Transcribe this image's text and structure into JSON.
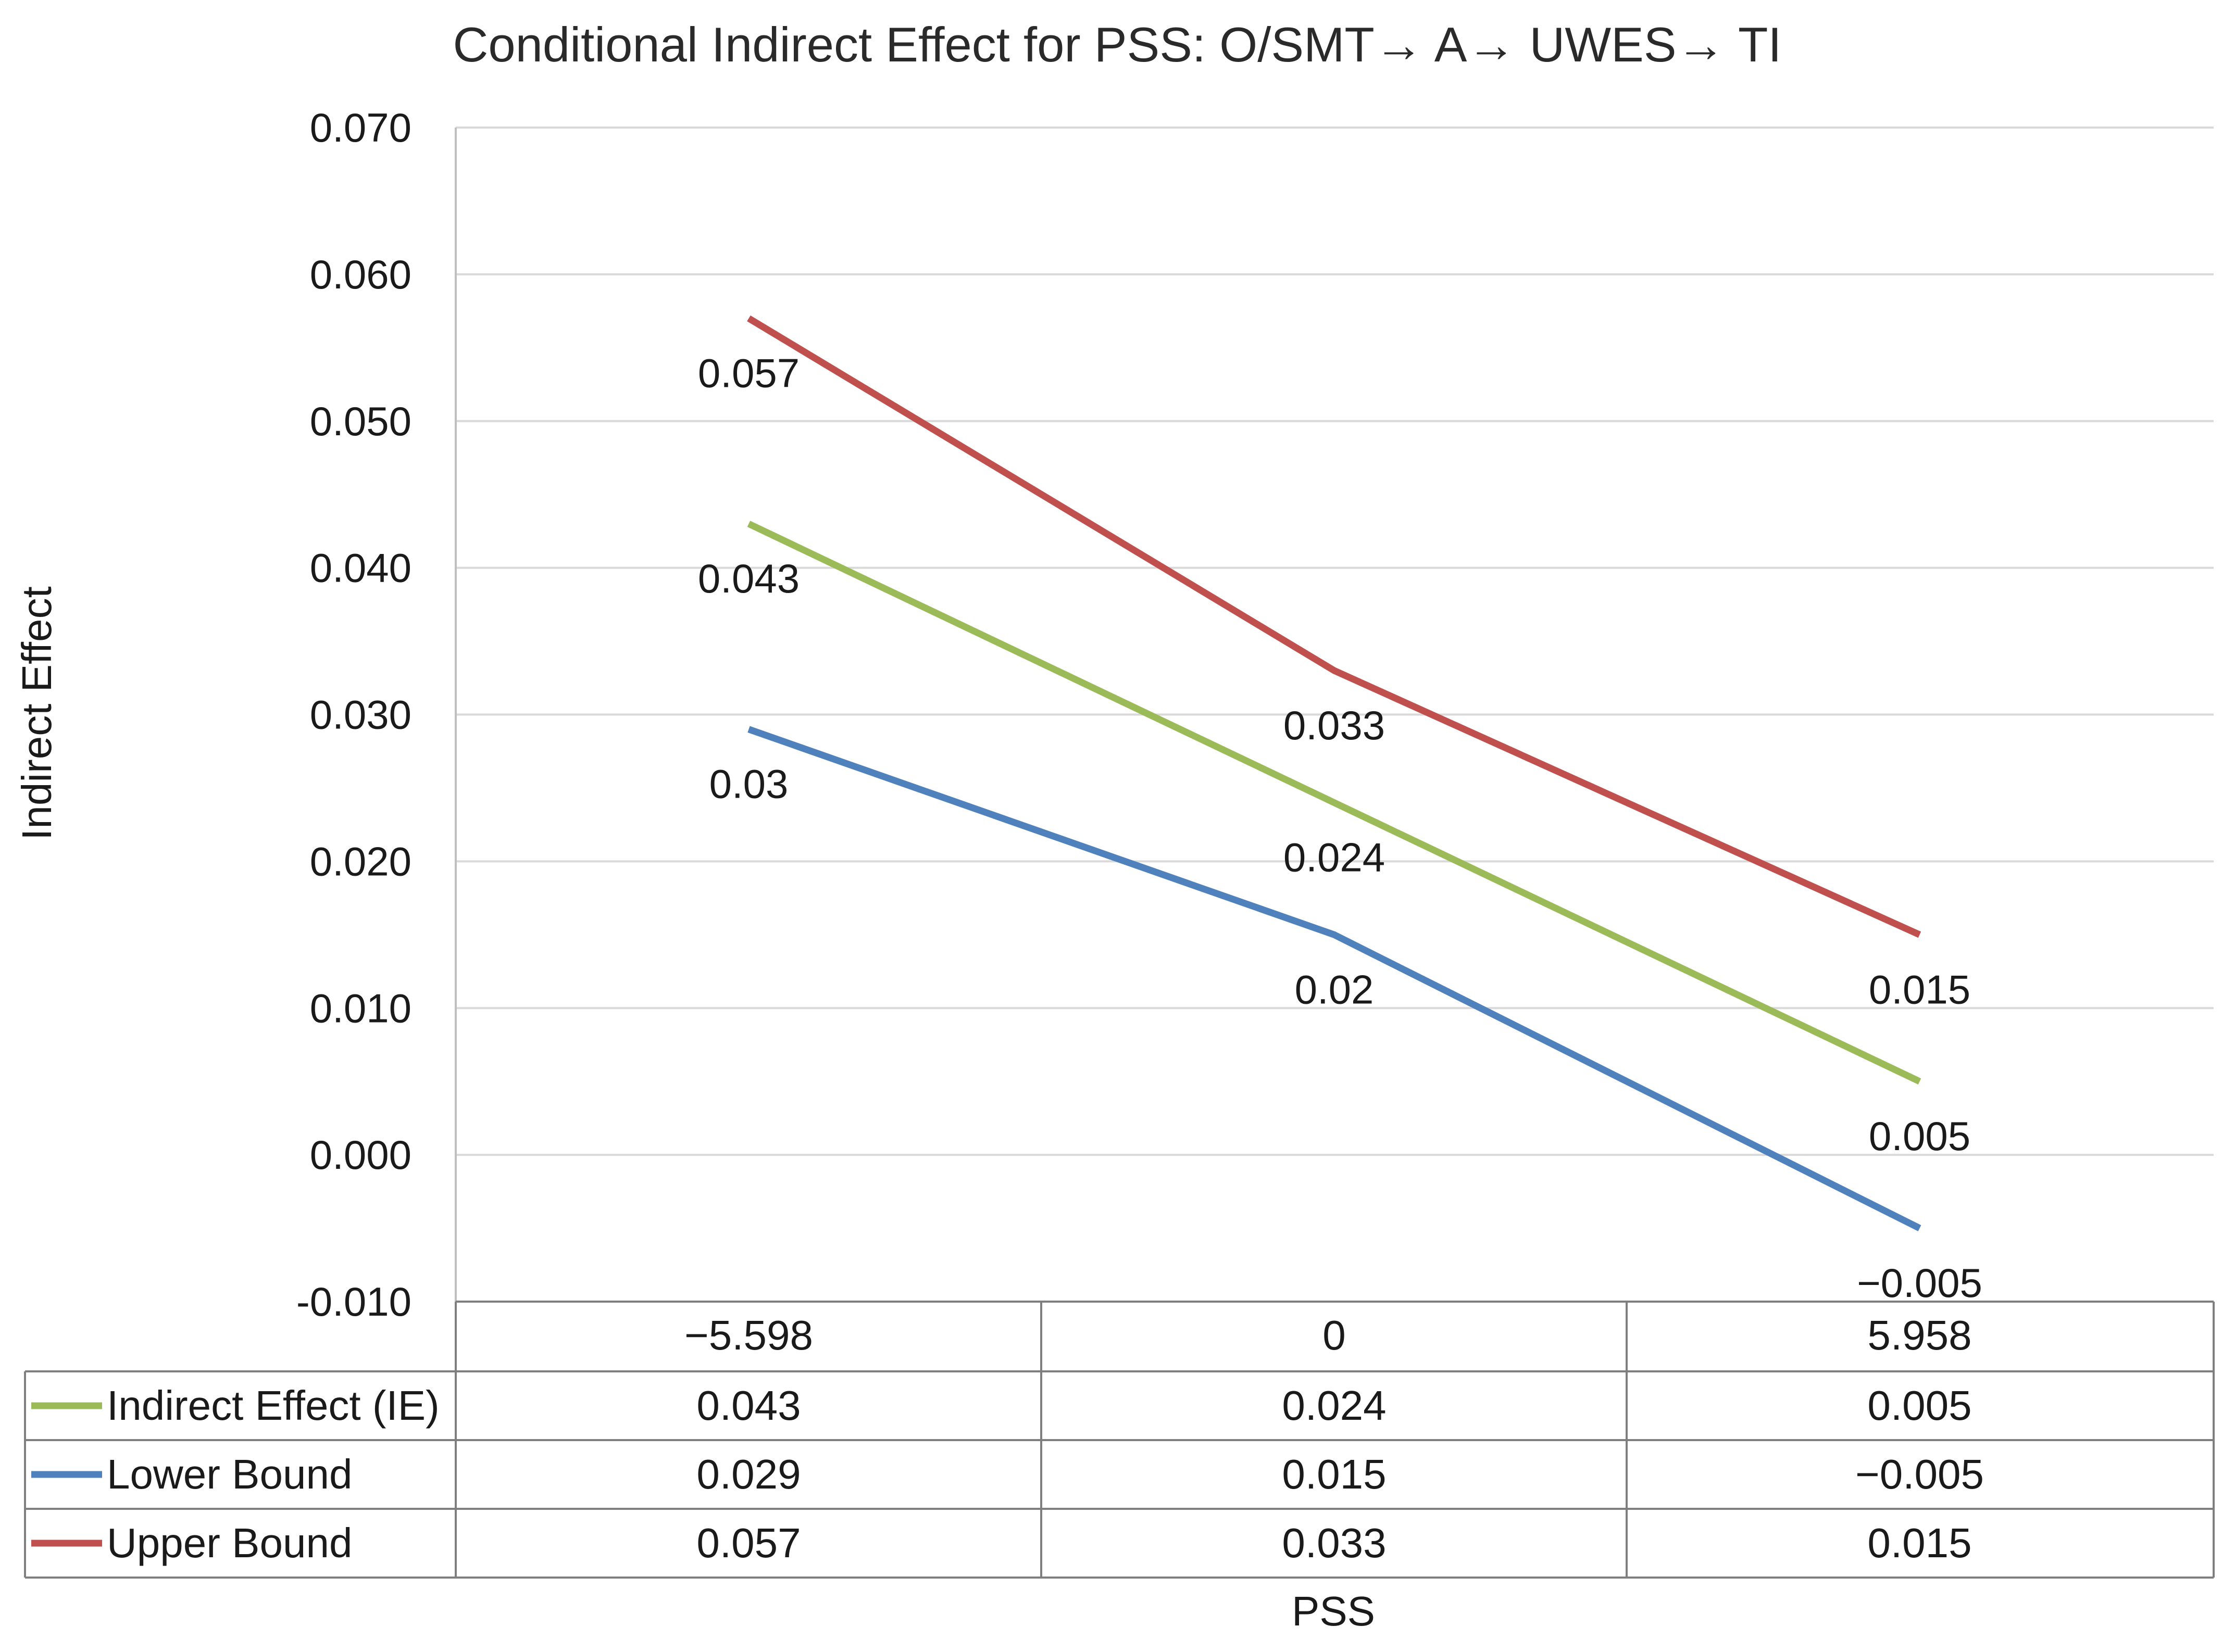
{
  "chart_data": {
    "type": "line",
    "title": "Conditional Indirect Effect for PSS: O/SMT→ A→ UWES→ TI",
    "xlabel": "PSS",
    "ylabel": "Indirect Effect",
    "ylim": [
      -0.01,
      0.07
    ],
    "y_ticks": [
      "0.070",
      "0.060",
      "0.050",
      "0.040",
      "0.030",
      "0.020",
      "0.010",
      "0.000",
      "-0.010"
    ],
    "grid": true,
    "categories": [
      "−5.598",
      "0",
      "5.958"
    ],
    "series": [
      {
        "name": "Indirect Effect (IE)",
        "color": "#9bbb59",
        "values": [
          0.043,
          0.024,
          0.005
        ],
        "data_labels": [
          "0.043",
          "0.024",
          "0.005"
        ],
        "table_values": [
          "0.043",
          "0.024",
          "0.005"
        ]
      },
      {
        "name": "Lower Bound",
        "color": "#4f81bd",
        "values": [
          0.029,
          0.015,
          -0.005
        ],
        "data_labels": [
          "0.03",
          "0.02",
          "−0.005"
        ],
        "table_values": [
          "0.029",
          "0.015",
          "−0.005"
        ]
      },
      {
        "name": "Upper Bound",
        "color": "#c0504d",
        "values": [
          0.057,
          0.033,
          0.015
        ],
        "data_labels": [
          "0.057",
          "0.033",
          "0.015"
        ],
        "table_values": [
          "0.057",
          "0.033",
          "0.015"
        ]
      }
    ]
  }
}
